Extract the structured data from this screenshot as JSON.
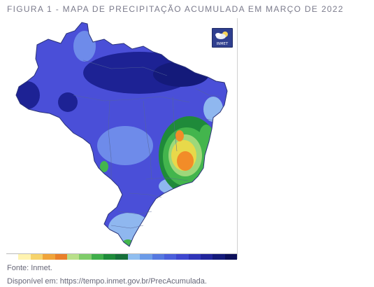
{
  "figure": {
    "title": "FIGURA 1 - MAPA DE PRECIPITAÇÃO ACUMULADA EM MARÇO DE 2022"
  },
  "map": {
    "subject": "Brazil accumulated precipitation, March 2022",
    "logo": {
      "icon": "cloud-sun-icon",
      "text": "INMET"
    },
    "colors": {
      "very_high": "#1a1f8c",
      "high": "#3d3ccf",
      "medium_high": "#5458e0",
      "medium": "#6e8bea",
      "low_medium": "#8fb7ef",
      "green_dark": "#1f8a3a",
      "green": "#43b54d",
      "green_light": "#9ed87a",
      "yellow": "#e8d94a",
      "orange": "#f28c28",
      "boundary": "#556699"
    },
    "legend_colors": [
      "#ffffff",
      "#fff3b0",
      "#f6d36b",
      "#f0a43a",
      "#e9802a",
      "#b9e08a",
      "#7fcc6a",
      "#3fae4a",
      "#1e8b3a",
      "#16703a",
      "#8fbef0",
      "#6b9be8",
      "#5578e0",
      "#4a5fdb",
      "#3e47cf",
      "#2f34b8",
      "#21259c",
      "#141a7a",
      "#0c0f5a"
    ]
  },
  "footer": {
    "source": "Fonte: Inmet.",
    "available": "Disponível em: https://tempo.inmet.gov.br/PrecAcumulada."
  }
}
